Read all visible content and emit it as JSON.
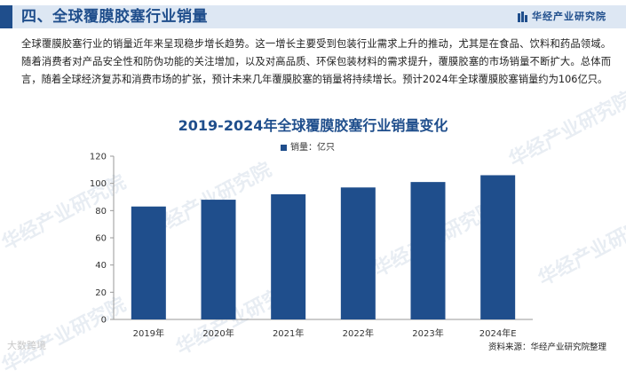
{
  "header": {
    "title": "四、全球覆膜胶塞行业销量",
    "brand": "华经产业研究院"
  },
  "intro_text": "全球覆膜胶塞行业的销量近年来呈现稳步增长趋势。这一增长主要受到包装行业需求上升的推动，尤其是在食品、饮料和药品领域。随着消费者对产品安全性和防伪功能的关注增加，以及对高品质、环保包装材料的需求提升，覆膜胶塞的市场销量不断扩大。总体而言，随着全球经济复苏和消费市场的扩张，预计未来几年覆膜胶塞的销量将持续增长。预计2024年全球覆膜胶塞销量约为106亿只。",
  "watermark_text": "华经产业研究院",
  "corner_mark": "大数跨境",
  "source": "资料来源：华经产业研究院整理",
  "colors": {
    "bar": "#1f4e8c",
    "accent": "#1f4e8c",
    "header_bg": "#dde7f3"
  },
  "chart_data": {
    "type": "bar",
    "title": "2019-2024年全球覆膜胶塞行业销量变化",
    "categories": [
      "2019年",
      "2020年",
      "2021年",
      "2022年",
      "2023年",
      "2024年E"
    ],
    "series": [
      {
        "name": "销量：亿只",
        "values": [
          83,
          88,
          92,
          97,
          101,
          106
        ]
      }
    ],
    "ylim": [
      0,
      120
    ],
    "yticks": [
      0,
      20,
      40,
      60,
      80,
      100,
      120
    ],
    "legend_position": "top-center",
    "grid": false
  }
}
